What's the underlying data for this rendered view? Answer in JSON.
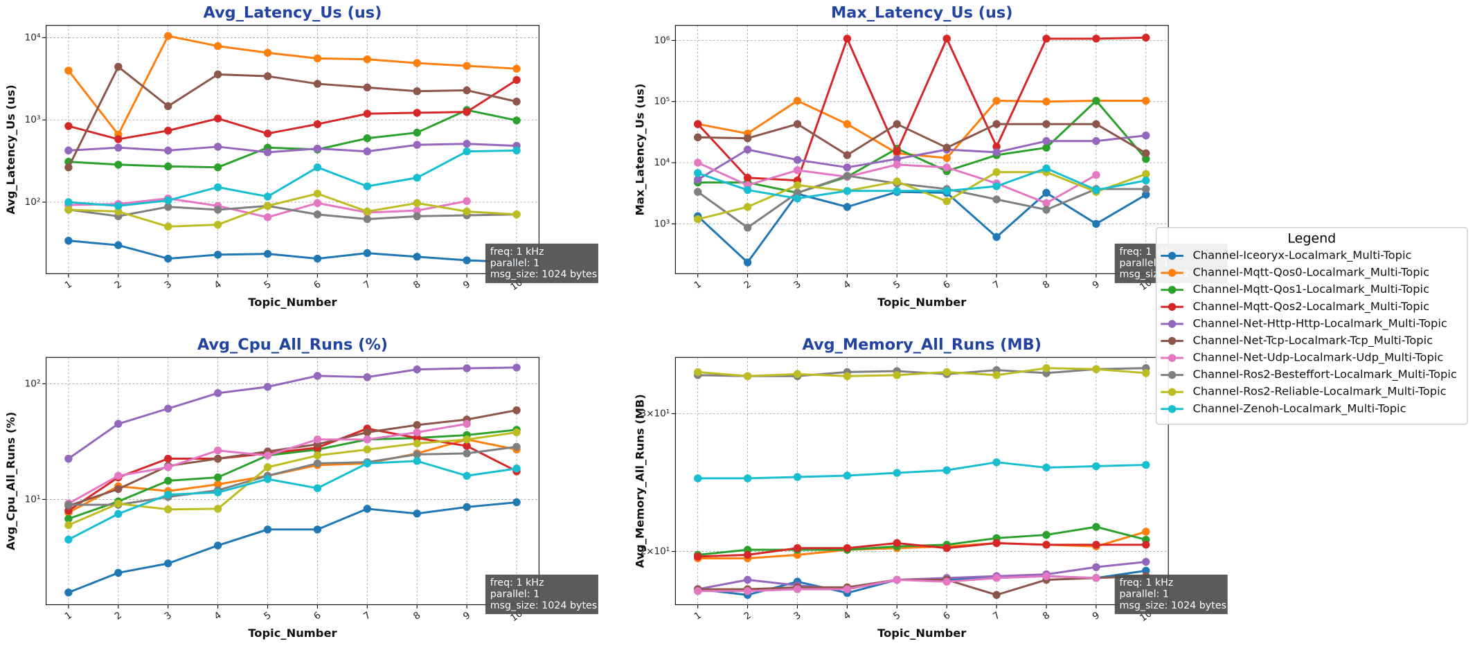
{
  "chart_data": [
    {
      "type": "line",
      "title": "Avg_Latency_Us  (us)",
      "x_label": "Topic_Number",
      "y_label": "Avg_Latency_Us (us)",
      "log_y": true,
      "grid": true,
      "annotation": [
        "freq: 1 kHz",
        "parallel: 1",
        "msg_size: 1024 bytes"
      ],
      "x": [
        1,
        2,
        3,
        4,
        5,
        6,
        7,
        8,
        9,
        10
      ],
      "xlim": [
        0.55,
        10.45
      ],
      "xticks": [
        1,
        2,
        3,
        4,
        5,
        6,
        7,
        8,
        9,
        10
      ],
      "ylim": [
        13.5,
        14100
      ],
      "yticks": [
        {
          "value": 100,
          "label": "10²"
        },
        {
          "value": 1000,
          "label": "10³"
        },
        {
          "value": 10000,
          "label": "10⁴"
        }
      ],
      "series": [
        {
          "name": "Channel-Iceoryx-Localmark_Multi-Topic",
          "color": "#1f77b4",
          "values": [
            34,
            30,
            20.6,
            23,
            23.5,
            20.6,
            24,
            21.7,
            19.6,
            18.6
          ]
        },
        {
          "name": "Channel-Mqtt-Qos0-Localmark_Multi-Topic",
          "color": "#ff7f0e",
          "values": [
            3980,
            665,
            10500,
            7900,
            6560,
            5600,
            5460,
            4910,
            4540,
            4200
          ]
        },
        {
          "name": "Channel-Mqtt-Qos1-Localmark_Multi-Topic",
          "color": "#2ca02c",
          "values": [
            310,
            286,
            272,
            265,
            460,
            437,
            598,
            700,
            1320,
            986
          ]
        },
        {
          "name": "Channel-Mqtt-Qos2-Localmark_Multi-Topic",
          "color": "#d62728",
          "values": [
            843,
            583,
            740,
            1040,
            683,
            889,
            1190,
            1220,
            1250,
            3060
          ]
        },
        {
          "name": "Channel-Net-Http-Http-Localmark_Multi-Topic",
          "color": "#9467bd",
          "values": [
            425,
            460,
            425,
            472,
            404,
            448,
            414,
            498,
            512,
            485
          ]
        },
        {
          "name": "Channel-Net-Tcp-Localmark-Tcp_Multi-Topic",
          "color": "#8c564b",
          "values": [
            265,
            4430,
            1470,
            3580,
            3400,
            2750,
            2480,
            2230,
            2290,
            1670
          ]
        },
        {
          "name": "Channel-Net-Udp-Localmark-Udp_Multi-Topic",
          "color": "#e377c2",
          "values": [
            92.4,
            95,
            111,
            90,
            65.6,
            97.4,
            74.8,
            78.9,
            103,
            null
          ]
        },
        {
          "name": "Channel-Ros2-Besteffort-Localmark_Multi-Topic",
          "color": "#7f7f7f",
          "values": [
            81,
            67.4,
            87.7,
            81,
            90,
            71,
            62.2,
            67.4,
            69.2,
            71
          ]
        },
        {
          "name": "Channel-Ros2-Reliable-Localmark_Multi-Topic",
          "color": "#bcbd22",
          "values": [
            81,
            77,
            50.5,
            53.2,
            90,
            127,
            77,
            97.4,
            77,
            71
          ]
        },
        {
          "name": "Channel-Zenoh-Localmark_Multi-Topic",
          "color": "#17becf",
          "values": [
            100,
            90,
            105,
            152,
            117,
            265,
            156,
            198,
            414,
            425
          ]
        }
      ]
    },
    {
      "type": "line",
      "title": "Max_Latency_Us  (us)",
      "x_label": "Topic_Number",
      "y_label": "Max_Latency_Us (us)",
      "log_y": true,
      "grid": true,
      "annotation": [
        "freq: 1 kHz",
        "parallel: 1",
        "msg_size: 1024 bytes"
      ],
      "x": [
        1,
        2,
        3,
        4,
        5,
        6,
        7,
        8,
        9,
        10
      ],
      "xlim": [
        0.55,
        10.45
      ],
      "xticks": [
        1,
        2,
        3,
        4,
        5,
        6,
        7,
        8,
        9,
        10
      ],
      "ylim": [
        153,
        1760000
      ],
      "yticks": [
        {
          "value": 1000,
          "label": "10³"
        },
        {
          "value": 10000,
          "label": "10⁴"
        },
        {
          "value": 100000,
          "label": "10⁵"
        },
        {
          "value": 1000000,
          "label": "10⁶"
        }
      ],
      "series": [
        {
          "name": "Channel-Iceoryx-Localmark_Multi-Topic",
          "color": "#1f77b4",
          "values": [
            1330,
            234,
            3100,
            1890,
            3330,
            3220,
            610,
            3220,
            1000,
            3000
          ]
        },
        {
          "name": "Channel-Mqtt-Qos0-Localmark_Multi-Topic",
          "color": "#ff7f0e",
          "values": [
            42800,
            30000,
            103000,
            42800,
            14300,
            11900,
            103000,
            100000,
            103000,
            103000
          ]
        },
        {
          "name": "Channel-Mqtt-Qos1-Localmark_Multi-Topic",
          "color": "#2ca02c",
          "values": [
            4750,
            4750,
            3220,
            5880,
            17000,
            7280,
            13300,
            17600,
            103000,
            11500
          ]
        },
        {
          "name": "Channel-Mqtt-Qos2-Localmark_Multi-Topic",
          "color": "#d62728",
          "values": [
            42800,
            5680,
            5110,
            1070000,
            15300,
            1070000,
            18300,
            1070000,
            1070000,
            1110000
          ]
        },
        {
          "name": "Channel-Net-Http-Http-Localmark_Multi-Topic",
          "color": "#9467bd",
          "values": [
            5280,
            16400,
            11100,
            8380,
            11500,
            16400,
            14800,
            22600,
            22600,
            27900
          ]
        },
        {
          "name": "Channel-Net-Tcp-Localmark-Tcp_Multi-Topic",
          "color": "#8c564b",
          "values": [
            26000,
            25100,
            42800,
            13300,
            42800,
            17600,
            42800,
            42800,
            42800,
            14300
          ]
        },
        {
          "name": "Channel-Net-Udp-Localmark-Udp_Multi-Topic",
          "color": "#e377c2",
          "values": [
            10000,
            4280,
            7540,
            5880,
            9310,
            8380,
            4590,
            2180,
            6310,
            null
          ]
        },
        {
          "name": "Channel-Ros2-Besteffort-Localmark_Multi-Topic",
          "color": "#7f7f7f",
          "values": [
            3330,
            867,
            3220,
            6100,
            4590,
            3710,
            2510,
            1700,
            3710,
            3710
          ]
        },
        {
          "name": "Channel-Ros2-Reliable-Localmark_Multi-Topic",
          "color": "#bcbd22",
          "values": [
            1190,
            1890,
            4280,
            3450,
            4920,
            2340,
            7010,
            7010,
            3330,
            6530
          ]
        },
        {
          "name": "Channel-Zenoh-Localmark_Multi-Topic",
          "color": "#17becf",
          "values": [
            6780,
            3580,
            2600,
            3450,
            3450,
            3450,
            4120,
            8090,
            3580,
            5110
          ]
        }
      ]
    },
    {
      "type": "line",
      "title": "Avg_Cpu_All_Runs  (%)",
      "x_label": "Topic_Number",
      "y_label": "Avg_Cpu_All_Runs (%)",
      "log_y": true,
      "grid": true,
      "annotation": [
        "freq: 1 kHz",
        "parallel: 1",
        "msg_size: 1024 bytes"
      ],
      "x": [
        1,
        2,
        3,
        4,
        5,
        6,
        7,
        8,
        9,
        10
      ],
      "xlim": [
        0.55,
        10.45
      ],
      "xticks": [
        1,
        2,
        3,
        4,
        5,
        6,
        7,
        8,
        9,
        10
      ],
      "ylim": [
        1.23,
        169
      ],
      "yticks": [
        {
          "value": 10,
          "label": "10¹"
        },
        {
          "value": 100,
          "label": "10²"
        }
      ],
      "series": [
        {
          "name": "Channel-Iceoryx-Localmark_Multi-Topic",
          "color": "#1f77b4",
          "values": [
            1.57,
            2.32,
            2.8,
            4.0,
            5.5,
            5.5,
            8.3,
            7.55,
            8.6,
            9.45
          ]
        },
        {
          "name": "Channel-Mqtt-Qos0-Localmark_Multi-Topic",
          "color": "#ff7f0e",
          "values": [
            7.7,
            13,
            11.8,
            13.5,
            16,
            19.8,
            20.5,
            25,
            33,
            27
          ]
        },
        {
          "name": "Channel-Mqtt-Qos1-Localmark_Multi-Topic",
          "color": "#2ca02c",
          "values": [
            6.8,
            9.6,
            14.5,
            15.5,
            24,
            27,
            33,
            34,
            36,
            40
          ]
        },
        {
          "name": "Channel-Mqtt-Qos2-Localmark_Multi-Topic",
          "color": "#d62728",
          "values": [
            8,
            15.5,
            22.5,
            22.5,
            25,
            28,
            41,
            34,
            29,
            17.5
          ]
        },
        {
          "name": "Channel-Net-Http-Http-Localmark_Multi-Topic",
          "color": "#9467bd",
          "values": [
            22.5,
            45,
            61,
            83,
            94,
            117,
            114,
            133,
            136,
            138
          ]
        },
        {
          "name": "Channel-Net-Tcp-Localmark-Tcp_Multi-Topic",
          "color": "#8c564b",
          "values": [
            8.8,
            12.3,
            19.5,
            22.5,
            26,
            30,
            38,
            44,
            49,
            59
          ]
        },
        {
          "name": "Channel-Net-Udp-Localmark-Udp_Multi-Topic",
          "color": "#e377c2",
          "values": [
            9.2,
            16,
            19,
            26.5,
            24,
            33,
            33,
            38,
            45,
            null
          ]
        },
        {
          "name": "Channel-Ros2-Besteffort-Localmark_Multi-Topic",
          "color": "#7f7f7f",
          "values": [
            9,
            9,
            10.5,
            12,
            16,
            20.5,
            21,
            24.5,
            25,
            28.5
          ]
        },
        {
          "name": "Channel-Ros2-Reliable-Localmark_Multi-Topic",
          "color": "#bcbd22",
          "values": [
            6,
            9.2,
            8.2,
            8.3,
            19,
            24,
            27,
            30.5,
            33,
            38
          ]
        },
        {
          "name": "Channel-Zenoh-Localmark_Multi-Topic",
          "color": "#17becf",
          "values": [
            4.5,
            7.5,
            11,
            11.5,
            15,
            12.5,
            20.5,
            21.5,
            16,
            18.5
          ]
        }
      ]
    },
    {
      "type": "line",
      "title": "Avg_Memory_All_Runs  (MB)",
      "x_label": "Topic_Number",
      "y_label": "Avg_Memory_All_Runs (MB)",
      "log_y": true,
      "grid": true,
      "annotation": [
        "freq: 1 kHz",
        "parallel: 1",
        "msg_size: 1024 bytes"
      ],
      "x": [
        1,
        2,
        3,
        4,
        5,
        6,
        7,
        8,
        9,
        10
      ],
      "xlim": [
        0.55,
        10.45
      ],
      "xticks": [
        1,
        2,
        3,
        4,
        5,
        6,
        7,
        8,
        9,
        10
      ],
      "ylim": [
        17.1,
        35.4
      ],
      "yticks": [
        {
          "value": 20,
          "label": "2×10¹"
        },
        {
          "value": 30,
          "label": "3×10¹"
        }
      ],
      "series": [
        {
          "name": "Channel-Iceoryx-Localmark_Multi-Topic",
          "color": "#1f77b4",
          "values": [
            17.9,
            17.6,
            18.3,
            17.7,
            18.4,
            18.4,
            18.5,
            18.6,
            18.5,
            18.9
          ]
        },
        {
          "name": "Channel-Mqtt-Qos0-Localmark_Multi-Topic",
          "color": "#ff7f0e",
          "values": [
            19.6,
            19.6,
            19.8,
            20.1,
            20.2,
            20.3,
            20.5,
            20.4,
            20.3,
            21.2
          ]
        },
        {
          "name": "Channel-Mqtt-Qos1-Localmark_Multi-Topic",
          "color": "#2ca02c",
          "values": [
            19.8,
            20.1,
            20.1,
            20.1,
            20.3,
            20.4,
            20.8,
            21.0,
            21.5,
            20.7
          ]
        },
        {
          "name": "Channel-Mqtt-Qos2-Localmark_Multi-Topic",
          "color": "#d62728",
          "values": [
            19.7,
            19.8,
            20.2,
            20.2,
            20.5,
            20.2,
            20.5,
            20.4,
            20.4,
            20.4
          ]
        },
        {
          "name": "Channel-Net-Http-Http-Localmark_Multi-Topic",
          "color": "#9467bd",
          "values": [
            17.9,
            18.4,
            18.1,
            17.9,
            18.4,
            18.5,
            18.6,
            18.7,
            19.1,
            19.4
          ]
        },
        {
          "name": "Channel-Net-Tcp-Localmark-Tcp_Multi-Topic",
          "color": "#8c564b",
          "values": [
            17.9,
            17.9,
            18.0,
            18.0,
            18.4,
            18.4,
            17.6,
            18.4,
            18.5,
            18.6
          ]
        },
        {
          "name": "Channel-Net-Udp-Localmark-Udp_Multi-Topic",
          "color": "#e377c2",
          "values": [
            17.8,
            17.8,
            17.9,
            17.9,
            18.4,
            18.3,
            18.5,
            18.6,
            18.5,
            null
          ]
        },
        {
          "name": "Channel-Ros2-Besteffort-Localmark_Multi-Topic",
          "color": "#7f7f7f",
          "values": [
            33.6,
            33.5,
            33.5,
            33.9,
            34.0,
            33.7,
            34.1,
            33.8,
            34.2,
            34.3
          ]
        },
        {
          "name": "Channel-Ros2-Reliable-Localmark_Multi-Topic",
          "color": "#bcbd22",
          "values": [
            33.9,
            33.5,
            33.7,
            33.5,
            33.6,
            33.9,
            33.6,
            34.3,
            34.2,
            33.8
          ]
        },
        {
          "name": "Channel-Zenoh-Localmark_Multi-Topic",
          "color": "#17becf",
          "values": [
            24.8,
            24.8,
            24.9,
            25.0,
            25.2,
            25.4,
            26.0,
            25.6,
            25.7,
            25.8
          ]
        }
      ]
    }
  ],
  "legend": {
    "title": "Legend",
    "position": "right"
  }
}
